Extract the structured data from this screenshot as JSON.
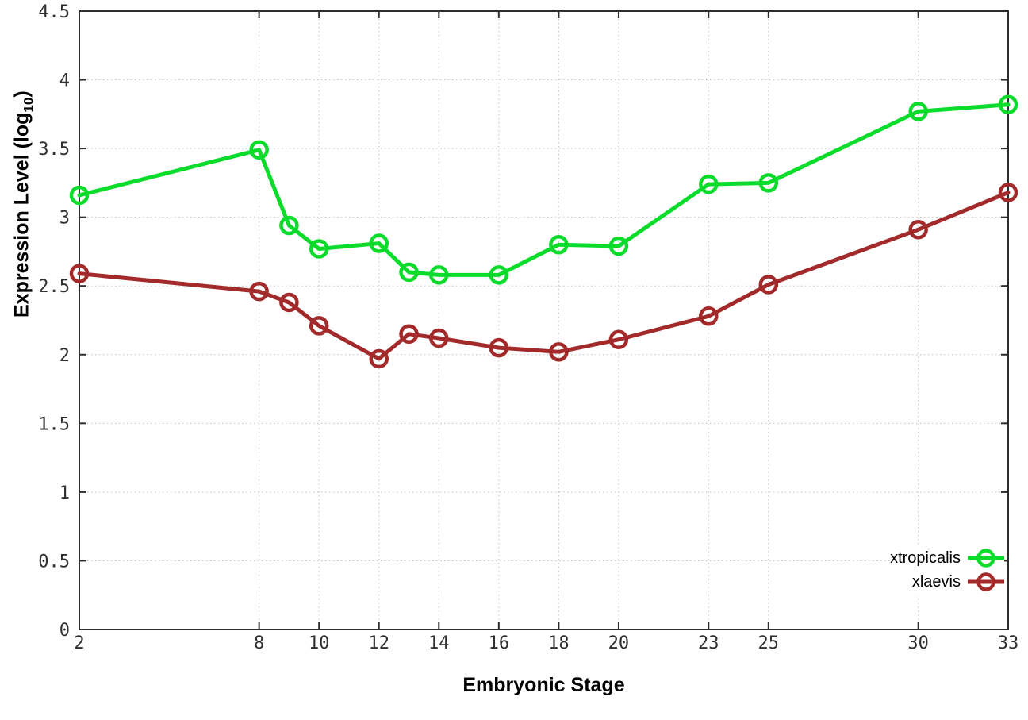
{
  "chart_data": {
    "type": "line",
    "title": "",
    "xlabel": "Embryonic Stage",
    "ylabel": "Expression Level (log10)",
    "ylabel_prefix": "Expression Level (log",
    "ylabel_sub": "10",
    "ylabel_suffix": ")",
    "x": [
      2,
      8,
      9,
      10,
      12,
      13,
      14,
      16,
      18,
      20,
      23,
      25,
      30,
      33
    ],
    "series": [
      {
        "name": "xtropicalis",
        "color": "#0bdc2b",
        "values": [
          3.16,
          3.49,
          2.94,
          2.77,
          2.81,
          2.6,
          2.58,
          2.58,
          2.8,
          2.79,
          3.24,
          3.25,
          3.77,
          3.82
        ]
      },
      {
        "name": "xlaevis",
        "color": "#a32a2a",
        "values": [
          2.59,
          2.46,
          2.38,
          2.21,
          1.97,
          2.15,
          2.12,
          2.05,
          2.02,
          2.11,
          2.28,
          2.51,
          2.91,
          3.18
        ]
      }
    ],
    "xlim": [
      2,
      33
    ],
    "ylim": [
      0,
      4.5
    ],
    "x_tick_values": [
      2,
      8,
      10,
      12,
      14,
      16,
      18,
      20,
      23,
      25,
      30,
      33
    ],
    "x_tick_labels": [
      "2",
      "8",
      "10",
      "12",
      "14",
      "16",
      "18",
      "20",
      "23",
      "25",
      "30",
      "33"
    ],
    "y_tick_values": [
      0,
      0.5,
      1,
      1.5,
      2,
      2.5,
      3,
      3.5,
      4,
      4.5
    ],
    "y_tick_labels": [
      "0",
      "0.5",
      "1",
      "1.5",
      "2",
      "2.5",
      "3",
      "3.5",
      "4",
      "4.5"
    ],
    "grid": true,
    "legend_position": "bottom-right",
    "marker": "open-circle",
    "colors": {
      "axis": "#2d2d2d",
      "grid": "#bfbfbf",
      "tick_text": "#303030",
      "background": "#ffffff"
    }
  }
}
